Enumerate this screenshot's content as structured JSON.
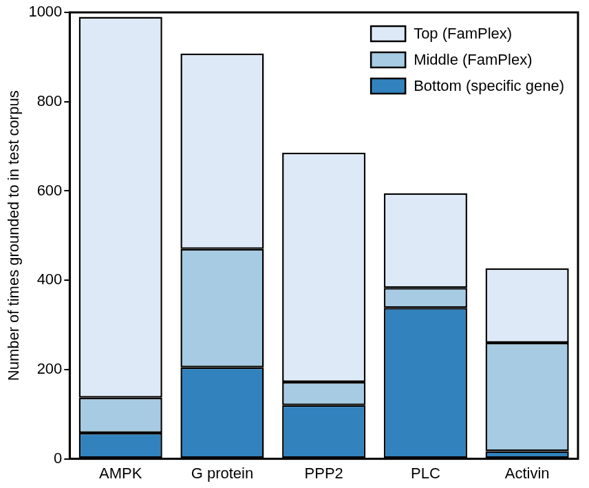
{
  "chart_data": {
    "type": "bar",
    "stacked": true,
    "y_label": "Number of times grounded to in test corpus",
    "categories": [
      "AMPK",
      "G protein",
      "PPP2",
      "PLC",
      "Activin"
    ],
    "series": [
      {
        "name": "Bottom (specific gene)",
        "color": "#3182bd",
        "values": [
          58,
          205,
          120,
          338,
          17
        ]
      },
      {
        "name": "Middle (FamPlex)",
        "color": "#a6cbe3",
        "values": [
          79,
          265,
          52,
          45,
          243
        ]
      },
      {
        "name": "Top (FamPlex)",
        "color": "#dde9f6",
        "values": [
          853,
          438,
          514,
          212,
          167
        ]
      }
    ],
    "ylim": [
      0,
      1000
    ],
    "yticks": [
      0,
      200,
      400,
      600,
      800,
      1000
    ],
    "grid": false,
    "legend": "upper right"
  }
}
